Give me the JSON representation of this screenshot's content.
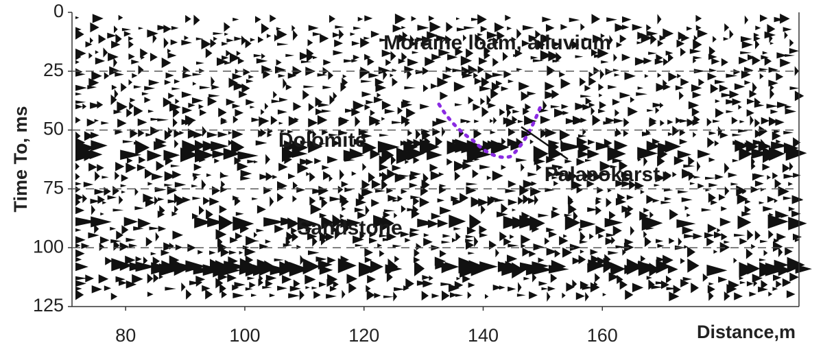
{
  "chart_data": {
    "type": "seismic",
    "xlabel": "Distance,m",
    "ylabel": "Time To, ms",
    "xlim": [
      71,
      193
    ],
    "xticks": [
      80,
      100,
      120,
      140,
      160
    ],
    "ylim": [
      0,
      125
    ],
    "yticks": [
      0,
      25,
      50,
      75,
      100,
      125
    ],
    "y_inverted": true,
    "grid": true,
    "annotations": [
      "Moraine loam, alluvium",
      "Dolomite",
      "Palaeokarst",
      "Sandstone"
    ]
  }
}
